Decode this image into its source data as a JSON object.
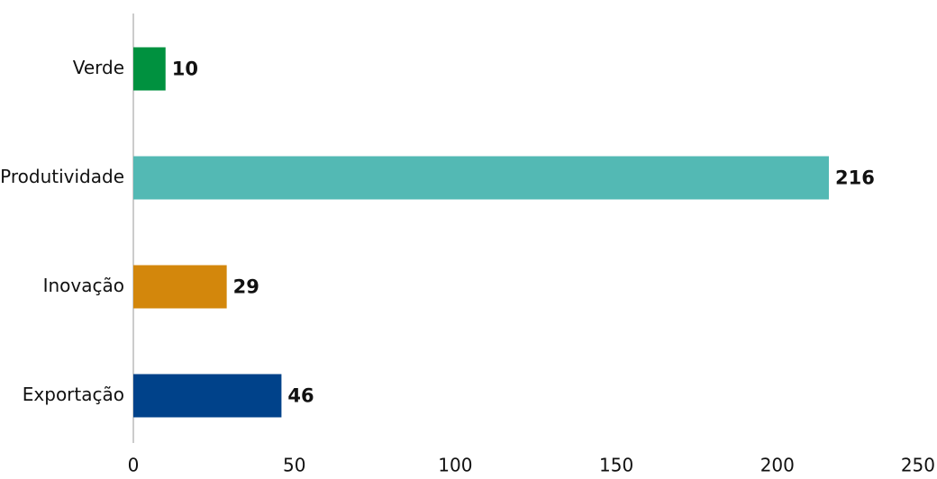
{
  "chart_data": {
    "type": "hbar",
    "categories": [
      "Verde",
      "Produtividade",
      "Inovação",
      "Exportação"
    ],
    "values": [
      10,
      216,
      29,
      46
    ],
    "colors": [
      "#00913f",
      "#53b9b4",
      "#d3870c",
      "#00428a"
    ],
    "xlim": [
      0,
      250
    ],
    "xticks": [
      0,
      50,
      100,
      150,
      200,
      250
    ],
    "grid": false
  }
}
